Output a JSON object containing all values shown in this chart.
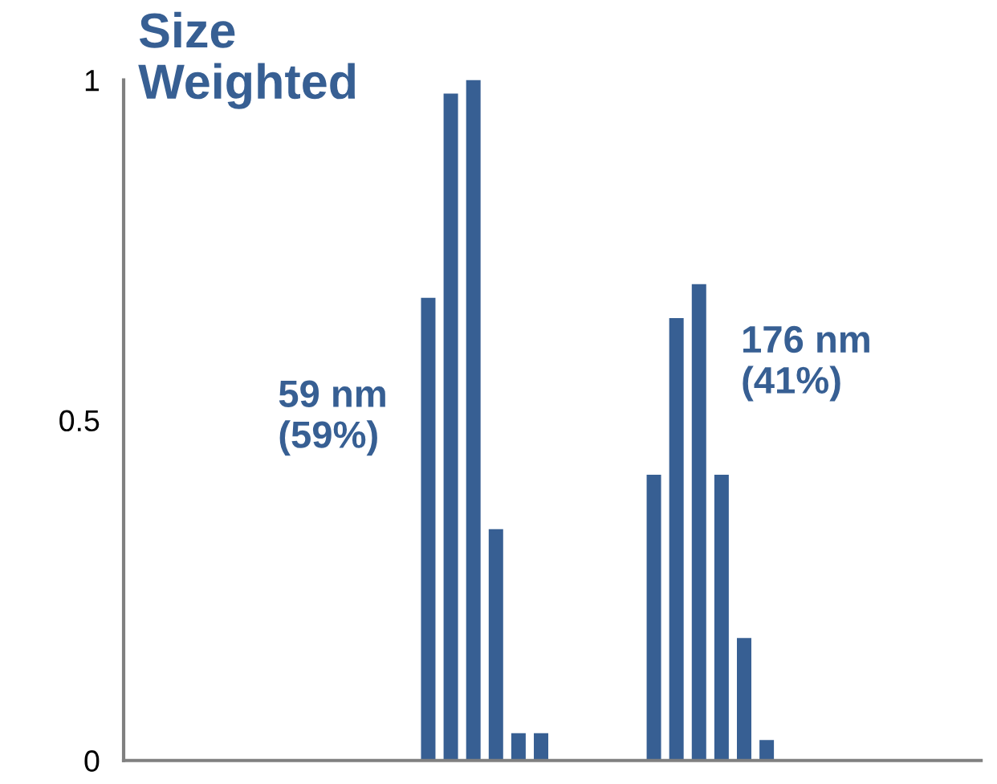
{
  "chart_data": {
    "type": "bar",
    "title": "Size\nWeighted",
    "categories": [
      null,
      null,
      null,
      null,
      null,
      null,
      null,
      null,
      null,
      null,
      null,
      null,
      null,
      null,
      null,
      null,
      null,
      null,
      null,
      null,
      null,
      null,
      null,
      null,
      null,
      null,
      null,
      null,
      null,
      null,
      null,
      null,
      null,
      null,
      null,
      null,
      null,
      null
    ],
    "series": [
      {
        "color": "#375f93",
        "values": [
          0,
          0,
          0,
          0,
          0,
          0,
          0,
          0,
          0,
          0,
          0,
          0,
          0,
          0.68,
          0.98,
          1.0,
          0.34,
          0.04,
          0.04,
          0,
          0,
          0,
          0,
          0.42,
          0.65,
          0.7,
          0.42,
          0.18,
          0.03,
          0,
          0,
          0,
          0,
          0,
          0,
          0,
          0,
          0
        ]
      }
    ],
    "annotations": [
      "59 nm\n(59%)",
      "176 nm\n(41%)"
    ],
    "ylim": [
      0,
      1
    ],
    "yticks": [
      0,
      0.5,
      1
    ],
    "grid": false,
    "legend": false,
    "tick_labels": "y"
  }
}
